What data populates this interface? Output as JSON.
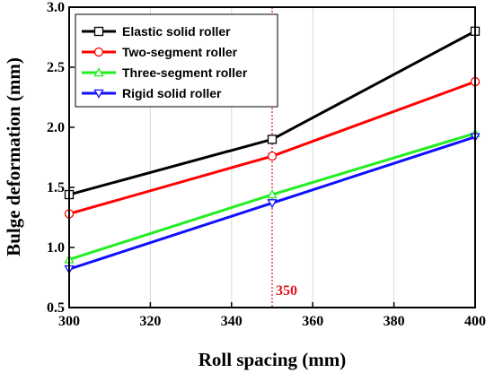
{
  "chart_data": {
    "type": "line",
    "title": "",
    "xlabel": "Roll spacing (mm)",
    "ylabel": "Bulge deformation (mm)",
    "xlim": [
      300,
      400
    ],
    "ylim": [
      0.5,
      3.0
    ],
    "x_ticks": [
      "300",
      "320",
      "340",
      "360",
      "380",
      "400"
    ],
    "y_ticks": [
      "0.5",
      "1.0",
      "1.5",
      "2.0",
      "2.5",
      "3.0"
    ],
    "grid": "vertical",
    "legend_position": "top-left",
    "x": [
      300,
      350,
      400
    ],
    "series": [
      {
        "name": "Elastic solid roller",
        "values": [
          1.44,
          1.9,
          2.8
        ],
        "color": "#000000",
        "marker": "square"
      },
      {
        "name": "Two-segment roller",
        "values": [
          1.28,
          1.76,
          2.38
        ],
        "color": "#ff0000",
        "marker": "circle"
      },
      {
        "name": "Three-segment roller",
        "values": [
          0.9,
          1.44,
          1.95
        ],
        "color": "#22ee22",
        "marker": "triangle-up"
      },
      {
        "name": "Rigid solid roller",
        "values": [
          0.82,
          1.37,
          1.92
        ],
        "color": "#1010ff",
        "marker": "triangle-down"
      }
    ],
    "annotation": {
      "x": 350,
      "label": "350",
      "color": "#e0141e",
      "style": "dotted vertical line"
    }
  }
}
